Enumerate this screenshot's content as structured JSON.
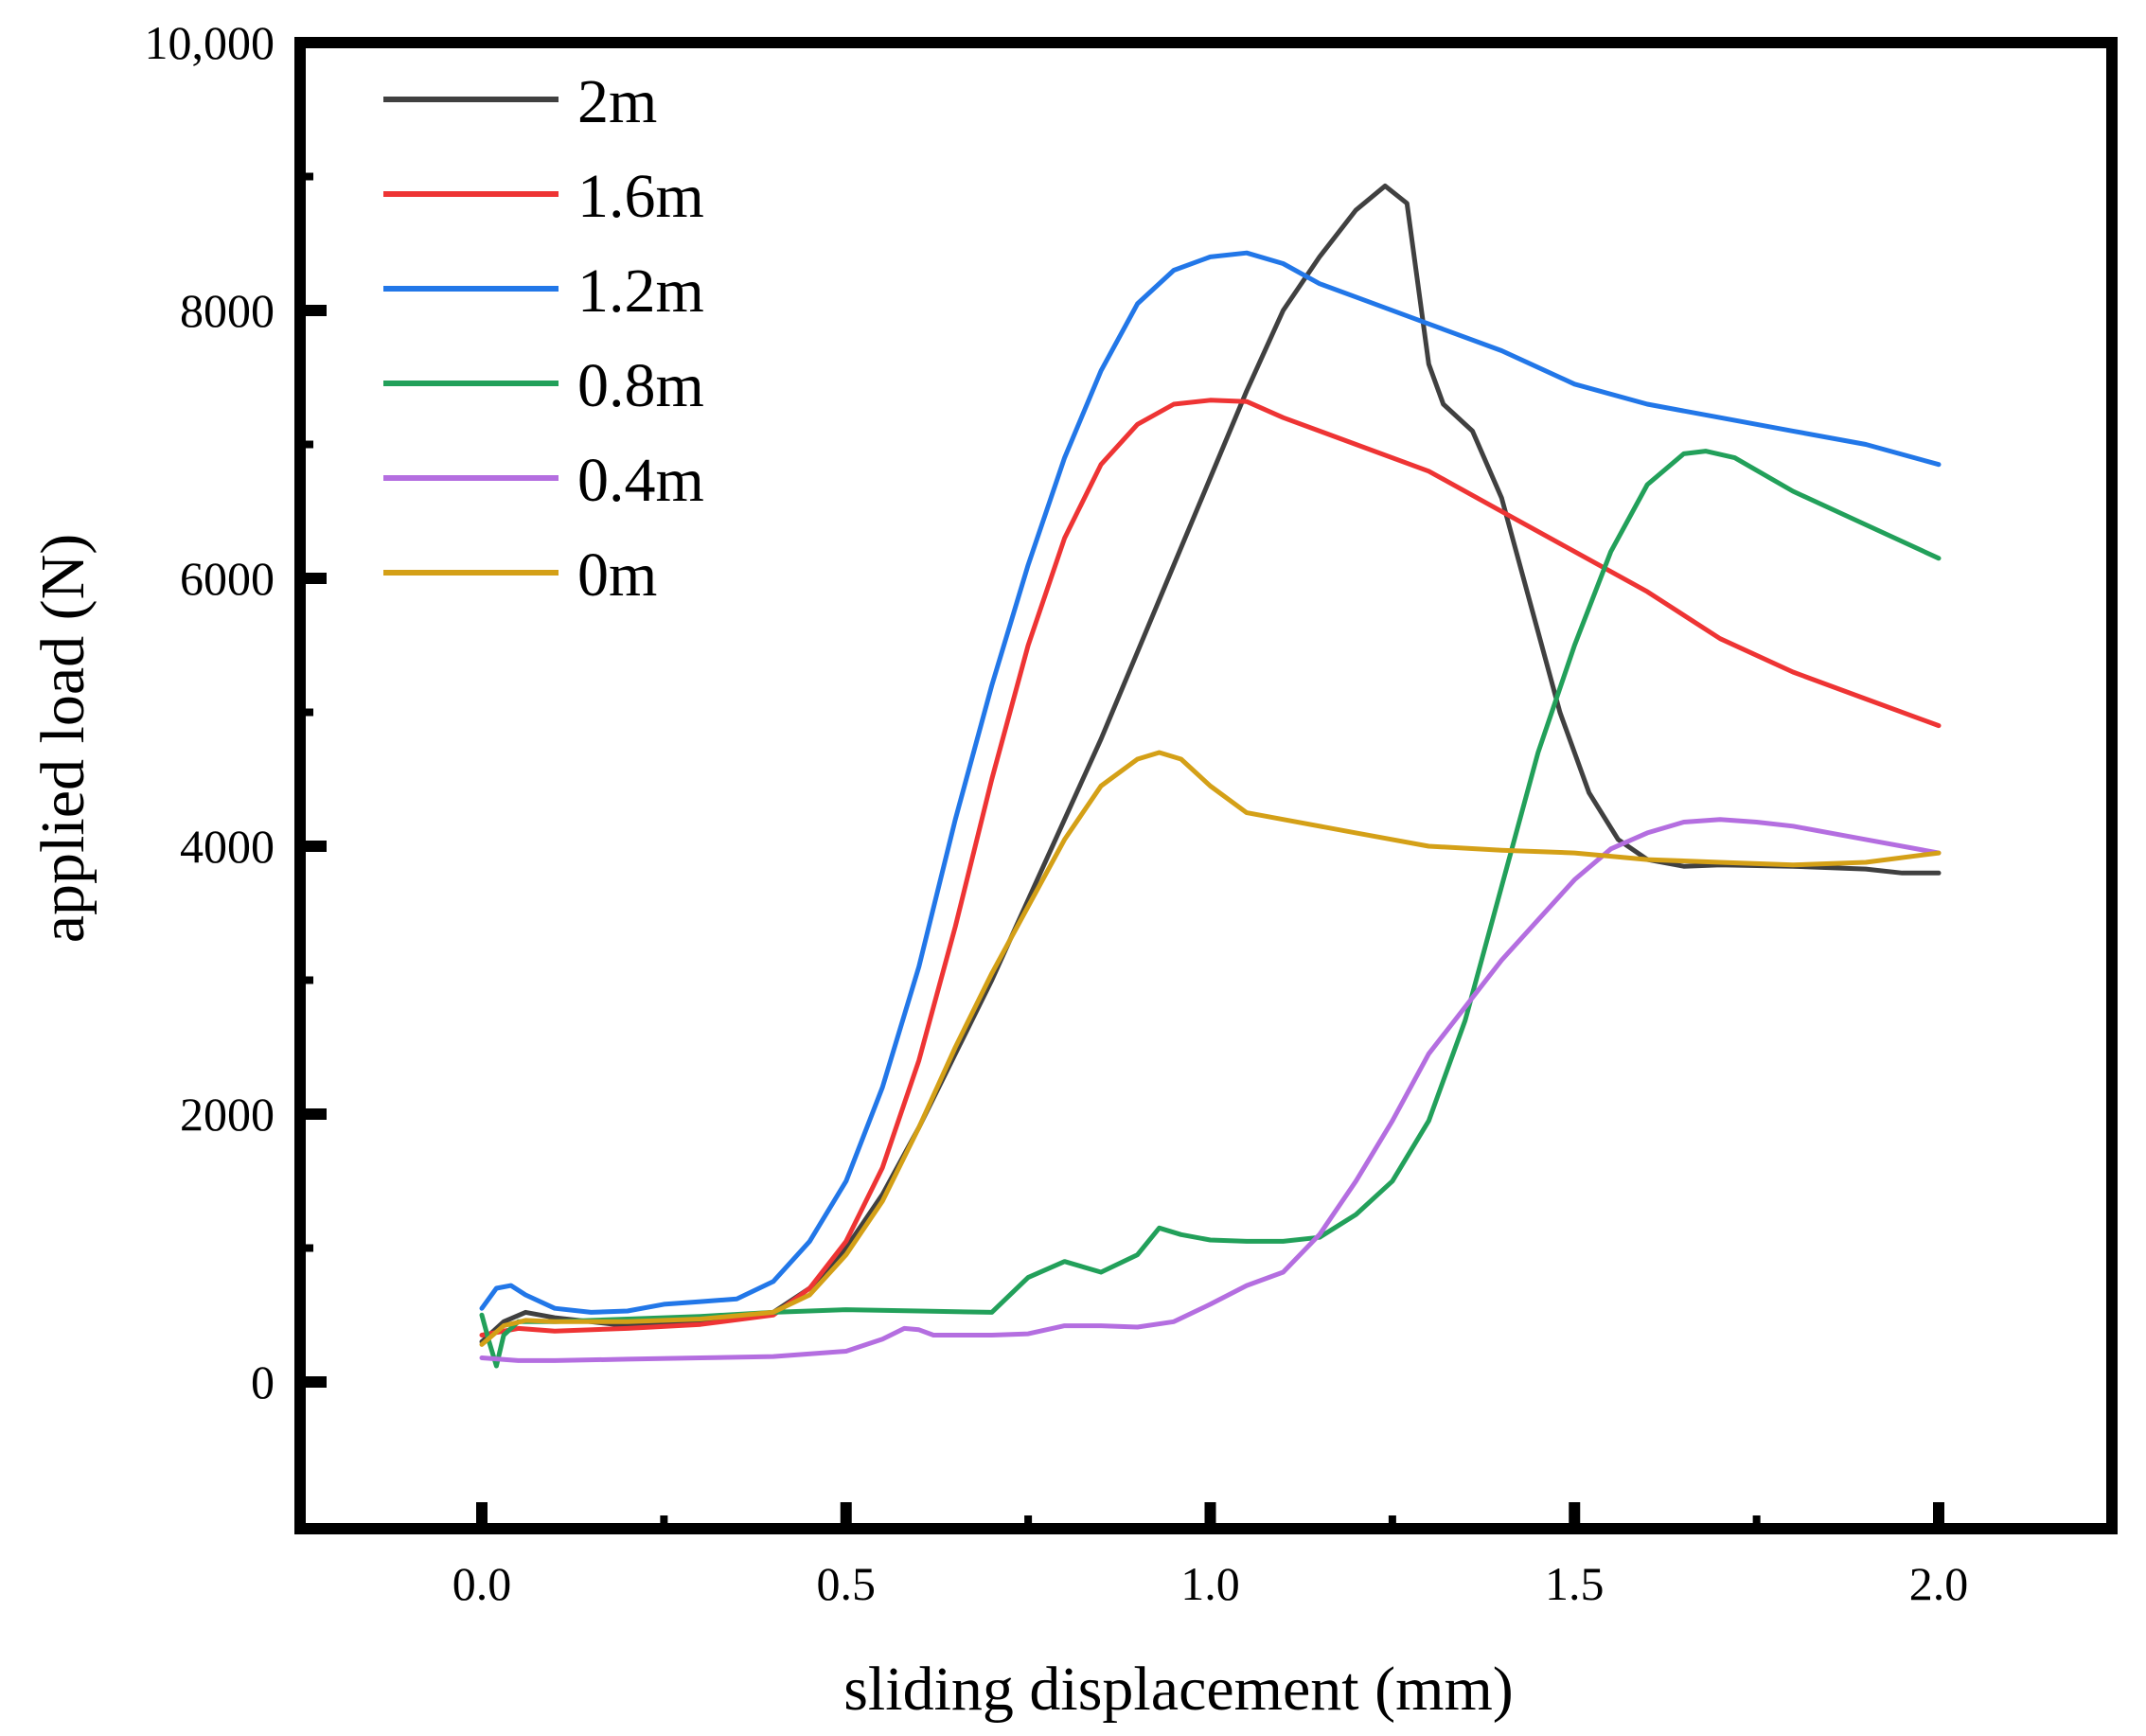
{
  "chart_data": {
    "type": "line",
    "title": "",
    "xlabel": "sliding displacement (mm)",
    "ylabel": "applied load (N)",
    "xlim": [
      -0.25,
      2.25
    ],
    "ylim": [
      -1000,
      10000
    ],
    "x_ticks": [
      0.0,
      0.5,
      1.0,
      1.5,
      2.0
    ],
    "x_tick_labels": [
      "0.0",
      "0.5",
      "1.0",
      "1.5",
      "2.0"
    ],
    "y_ticks": [
      0,
      2000,
      4000,
      6000,
      8000,
      10000
    ],
    "y_tick_labels": [
      "0",
      "2000",
      "4000",
      "6000",
      "8000",
      "10,000"
    ],
    "grid": false,
    "legend_position": "top-left",
    "series": [
      {
        "name": "2m",
        "color": "#404040",
        "points": [
          [
            0,
            300
          ],
          [
            0.03,
            450
          ],
          [
            0.06,
            520
          ],
          [
            0.1,
            480
          ],
          [
            0.2,
            420
          ],
          [
            0.3,
            450
          ],
          [
            0.4,
            520
          ],
          [
            0.45,
            700
          ],
          [
            0.5,
            1000
          ],
          [
            0.55,
            1400
          ],
          [
            0.6,
            1900
          ],
          [
            0.65,
            2450
          ],
          [
            0.7,
            3000
          ],
          [
            0.75,
            3600
          ],
          [
            0.8,
            4200
          ],
          [
            0.85,
            4800
          ],
          [
            0.9,
            5450
          ],
          [
            0.95,
            6100
          ],
          [
            1.0,
            6750
          ],
          [
            1.05,
            7400
          ],
          [
            1.1,
            8000
          ],
          [
            1.15,
            8400
          ],
          [
            1.2,
            8750
          ],
          [
            1.24,
            8930
          ],
          [
            1.27,
            8800
          ],
          [
            1.3,
            7600
          ],
          [
            1.32,
            7300
          ],
          [
            1.36,
            7100
          ],
          [
            1.4,
            6600
          ],
          [
            1.44,
            5800
          ],
          [
            1.48,
            5000
          ],
          [
            1.52,
            4400
          ],
          [
            1.56,
            4050
          ],
          [
            1.6,
            3900
          ],
          [
            1.65,
            3850
          ],
          [
            1.7,
            3860
          ],
          [
            1.8,
            3850
          ],
          [
            1.9,
            3830
          ],
          [
            1.95,
            3800
          ],
          [
            2.0,
            3800
          ]
        ]
      },
      {
        "name": "1.6m",
        "color": "#ee3434",
        "points": [
          [
            0,
            350
          ],
          [
            0.05,
            400
          ],
          [
            0.1,
            380
          ],
          [
            0.2,
            400
          ],
          [
            0.3,
            430
          ],
          [
            0.4,
            500
          ],
          [
            0.45,
            700
          ],
          [
            0.5,
            1050
          ],
          [
            0.55,
            1600
          ],
          [
            0.6,
            2400
          ],
          [
            0.65,
            3400
          ],
          [
            0.7,
            4500
          ],
          [
            0.75,
            5500
          ],
          [
            0.8,
            6300
          ],
          [
            0.85,
            6850
          ],
          [
            0.9,
            7150
          ],
          [
            0.95,
            7300
          ],
          [
            1.0,
            7330
          ],
          [
            1.05,
            7320
          ],
          [
            1.1,
            7200
          ],
          [
            1.2,
            7000
          ],
          [
            1.3,
            6800
          ],
          [
            1.4,
            6500
          ],
          [
            1.5,
            6200
          ],
          [
            1.6,
            5900
          ],
          [
            1.7,
            5550
          ],
          [
            1.8,
            5300
          ],
          [
            1.9,
            5100
          ],
          [
            2.0,
            4900
          ]
        ]
      },
      {
        "name": "1.2m",
        "color": "#2277e8",
        "points": [
          [
            0,
            550
          ],
          [
            0.02,
            700
          ],
          [
            0.04,
            720
          ],
          [
            0.06,
            650
          ],
          [
            0.1,
            550
          ],
          [
            0.15,
            520
          ],
          [
            0.2,
            530
          ],
          [
            0.25,
            580
          ],
          [
            0.3,
            600
          ],
          [
            0.35,
            620
          ],
          [
            0.4,
            750
          ],
          [
            0.45,
            1050
          ],
          [
            0.5,
            1500
          ],
          [
            0.55,
            2200
          ],
          [
            0.6,
            3100
          ],
          [
            0.65,
            4200
          ],
          [
            0.7,
            5200
          ],
          [
            0.75,
            6100
          ],
          [
            0.8,
            6900
          ],
          [
            0.85,
            7550
          ],
          [
            0.9,
            8050
          ],
          [
            0.95,
            8300
          ],
          [
            1.0,
            8400
          ],
          [
            1.05,
            8430
          ],
          [
            1.1,
            8350
          ],
          [
            1.15,
            8200
          ],
          [
            1.2,
            8100
          ],
          [
            1.3,
            7900
          ],
          [
            1.4,
            7700
          ],
          [
            1.5,
            7450
          ],
          [
            1.6,
            7300
          ],
          [
            1.7,
            7200
          ],
          [
            1.8,
            7100
          ],
          [
            1.9,
            7000
          ],
          [
            2.0,
            6850
          ]
        ]
      },
      {
        "name": "0.8m",
        "color": "#22a05a",
        "points": [
          [
            0,
            500
          ],
          [
            0.01,
            300
          ],
          [
            0.02,
            120
          ],
          [
            0.03,
            350
          ],
          [
            0.05,
            450
          ],
          [
            0.1,
            450
          ],
          [
            0.2,
            470
          ],
          [
            0.3,
            490
          ],
          [
            0.4,
            520
          ],
          [
            0.5,
            540
          ],
          [
            0.6,
            530
          ],
          [
            0.7,
            520
          ],
          [
            0.75,
            780
          ],
          [
            0.8,
            900
          ],
          [
            0.85,
            820
          ],
          [
            0.9,
            950
          ],
          [
            0.93,
            1150
          ],
          [
            0.96,
            1100
          ],
          [
            1.0,
            1060
          ],
          [
            1.05,
            1050
          ],
          [
            1.1,
            1050
          ],
          [
            1.15,
            1080
          ],
          [
            1.2,
            1250
          ],
          [
            1.25,
            1500
          ],
          [
            1.3,
            1950
          ],
          [
            1.35,
            2700
          ],
          [
            1.4,
            3700
          ],
          [
            1.45,
            4700
          ],
          [
            1.5,
            5500
          ],
          [
            1.55,
            6200
          ],
          [
            1.6,
            6700
          ],
          [
            1.65,
            6930
          ],
          [
            1.68,
            6950
          ],
          [
            1.72,
            6900
          ],
          [
            1.8,
            6650
          ],
          [
            1.9,
            6400
          ],
          [
            2.0,
            6150
          ]
        ]
      },
      {
        "name": "0.4m",
        "color": "#b46ee0",
        "points": [
          [
            0,
            180
          ],
          [
            0.05,
            160
          ],
          [
            0.1,
            160
          ],
          [
            0.2,
            170
          ],
          [
            0.3,
            180
          ],
          [
            0.4,
            190
          ],
          [
            0.5,
            230
          ],
          [
            0.55,
            320
          ],
          [
            0.58,
            400
          ],
          [
            0.6,
            390
          ],
          [
            0.62,
            350
          ],
          [
            0.7,
            350
          ],
          [
            0.75,
            360
          ],
          [
            0.8,
            420
          ],
          [
            0.85,
            420
          ],
          [
            0.9,
            410
          ],
          [
            0.95,
            450
          ],
          [
            1.0,
            580
          ],
          [
            1.05,
            720
          ],
          [
            1.1,
            820
          ],
          [
            1.15,
            1100
          ],
          [
            1.2,
            1500
          ],
          [
            1.25,
            1950
          ],
          [
            1.3,
            2450
          ],
          [
            1.35,
            2800
          ],
          [
            1.4,
            3150
          ],
          [
            1.45,
            3450
          ],
          [
            1.5,
            3750
          ],
          [
            1.55,
            3980
          ],
          [
            1.6,
            4100
          ],
          [
            1.65,
            4180
          ],
          [
            1.7,
            4200
          ],
          [
            1.75,
            4180
          ],
          [
            1.8,
            4150
          ],
          [
            1.9,
            4050
          ],
          [
            2.0,
            3950
          ]
        ]
      },
      {
        "name": "0m",
        "color": "#d4a017",
        "points": [
          [
            0,
            280
          ],
          [
            0.03,
            420
          ],
          [
            0.06,
            460
          ],
          [
            0.1,
            450
          ],
          [
            0.2,
            450
          ],
          [
            0.3,
            470
          ],
          [
            0.4,
            520
          ],
          [
            0.45,
            650
          ],
          [
            0.5,
            950
          ],
          [
            0.55,
            1350
          ],
          [
            0.6,
            1900
          ],
          [
            0.65,
            2500
          ],
          [
            0.7,
            3050
          ],
          [
            0.75,
            3550
          ],
          [
            0.8,
            4050
          ],
          [
            0.85,
            4450
          ],
          [
            0.9,
            4650
          ],
          [
            0.93,
            4700
          ],
          [
            0.96,
            4650
          ],
          [
            1.0,
            4450
          ],
          [
            1.05,
            4250
          ],
          [
            1.1,
            4200
          ],
          [
            1.2,
            4100
          ],
          [
            1.3,
            4000
          ],
          [
            1.4,
            3970
          ],
          [
            1.5,
            3950
          ],
          [
            1.6,
            3900
          ],
          [
            1.7,
            3880
          ],
          [
            1.8,
            3860
          ],
          [
            1.9,
            3880
          ],
          [
            2.0,
            3950
          ]
        ]
      }
    ]
  }
}
